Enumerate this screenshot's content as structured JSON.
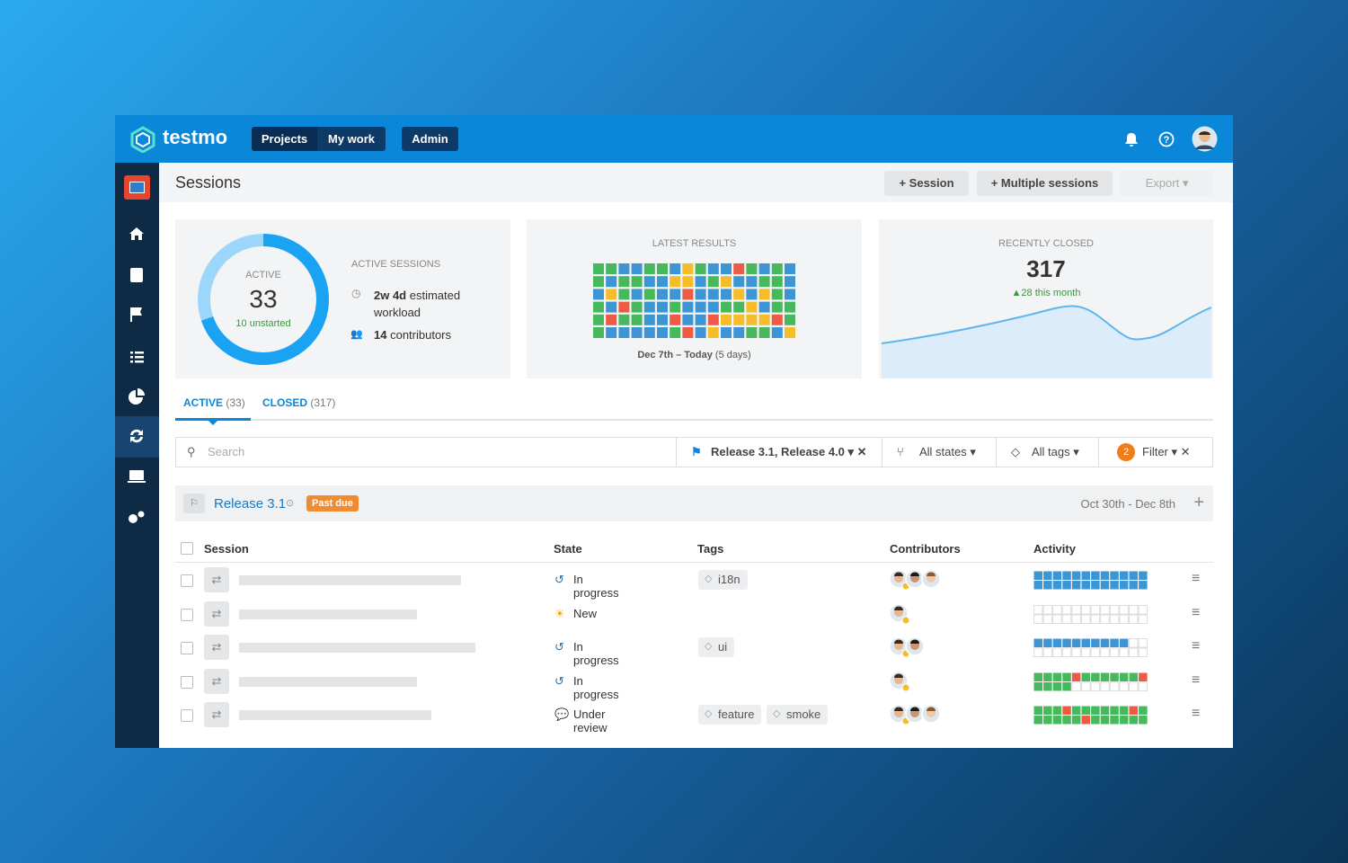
{
  "nav": {
    "brand": "testmo",
    "tabs": [
      "Projects",
      "My work"
    ],
    "admin": "Admin"
  },
  "toolbar": {
    "title": "Sessions",
    "buttons": [
      "Session",
      "Multiple sessions",
      "Export"
    ]
  },
  "active_card": {
    "label": "ACTIVE",
    "value": 33,
    "unstarted": 10,
    "unstarted_label": "unstarted",
    "heading": "ACTIVE SESSIONS",
    "workload": "2w 4d",
    "workload_label": "estimated workload",
    "contributors": 14,
    "contributors_label": "contributors"
  },
  "results_card": {
    "title": "LATEST RESULTS",
    "range": "Dec 7th – Today",
    "range_note": "(5 days)"
  },
  "closed_card": {
    "title": "RECENTLY CLOSED",
    "value": 317,
    "delta": 28,
    "delta_label": "this month"
  },
  "tabs": [
    {
      "label": "ACTIVE",
      "count": "(33)"
    },
    {
      "label": "CLOSED",
      "count": "(317)"
    }
  ],
  "filters": {
    "search": "Search",
    "milestones": "Release 3.1, Release 4.0",
    "states": "All states",
    "tags": "All tags",
    "filter_count": 2,
    "filter": "Filter"
  },
  "group": {
    "name": "Release 3.1",
    "badge": "Past due",
    "dates": "Oct 30th - Dec 8th"
  },
  "table": {
    "columns": [
      "Session",
      "State",
      "Tags",
      "Contributors",
      "Activity"
    ],
    "rows": [
      {
        "state": "In progress",
        "tags": [
          "i18n"
        ]
      },
      {
        "state": "New",
        "tags": []
      },
      {
        "state": "In progress",
        "tags": [
          "ui"
        ]
      },
      {
        "state": "In progress",
        "tags": []
      },
      {
        "state": "Under review",
        "tags": [
          "feature",
          "smoke"
        ]
      }
    ]
  }
}
